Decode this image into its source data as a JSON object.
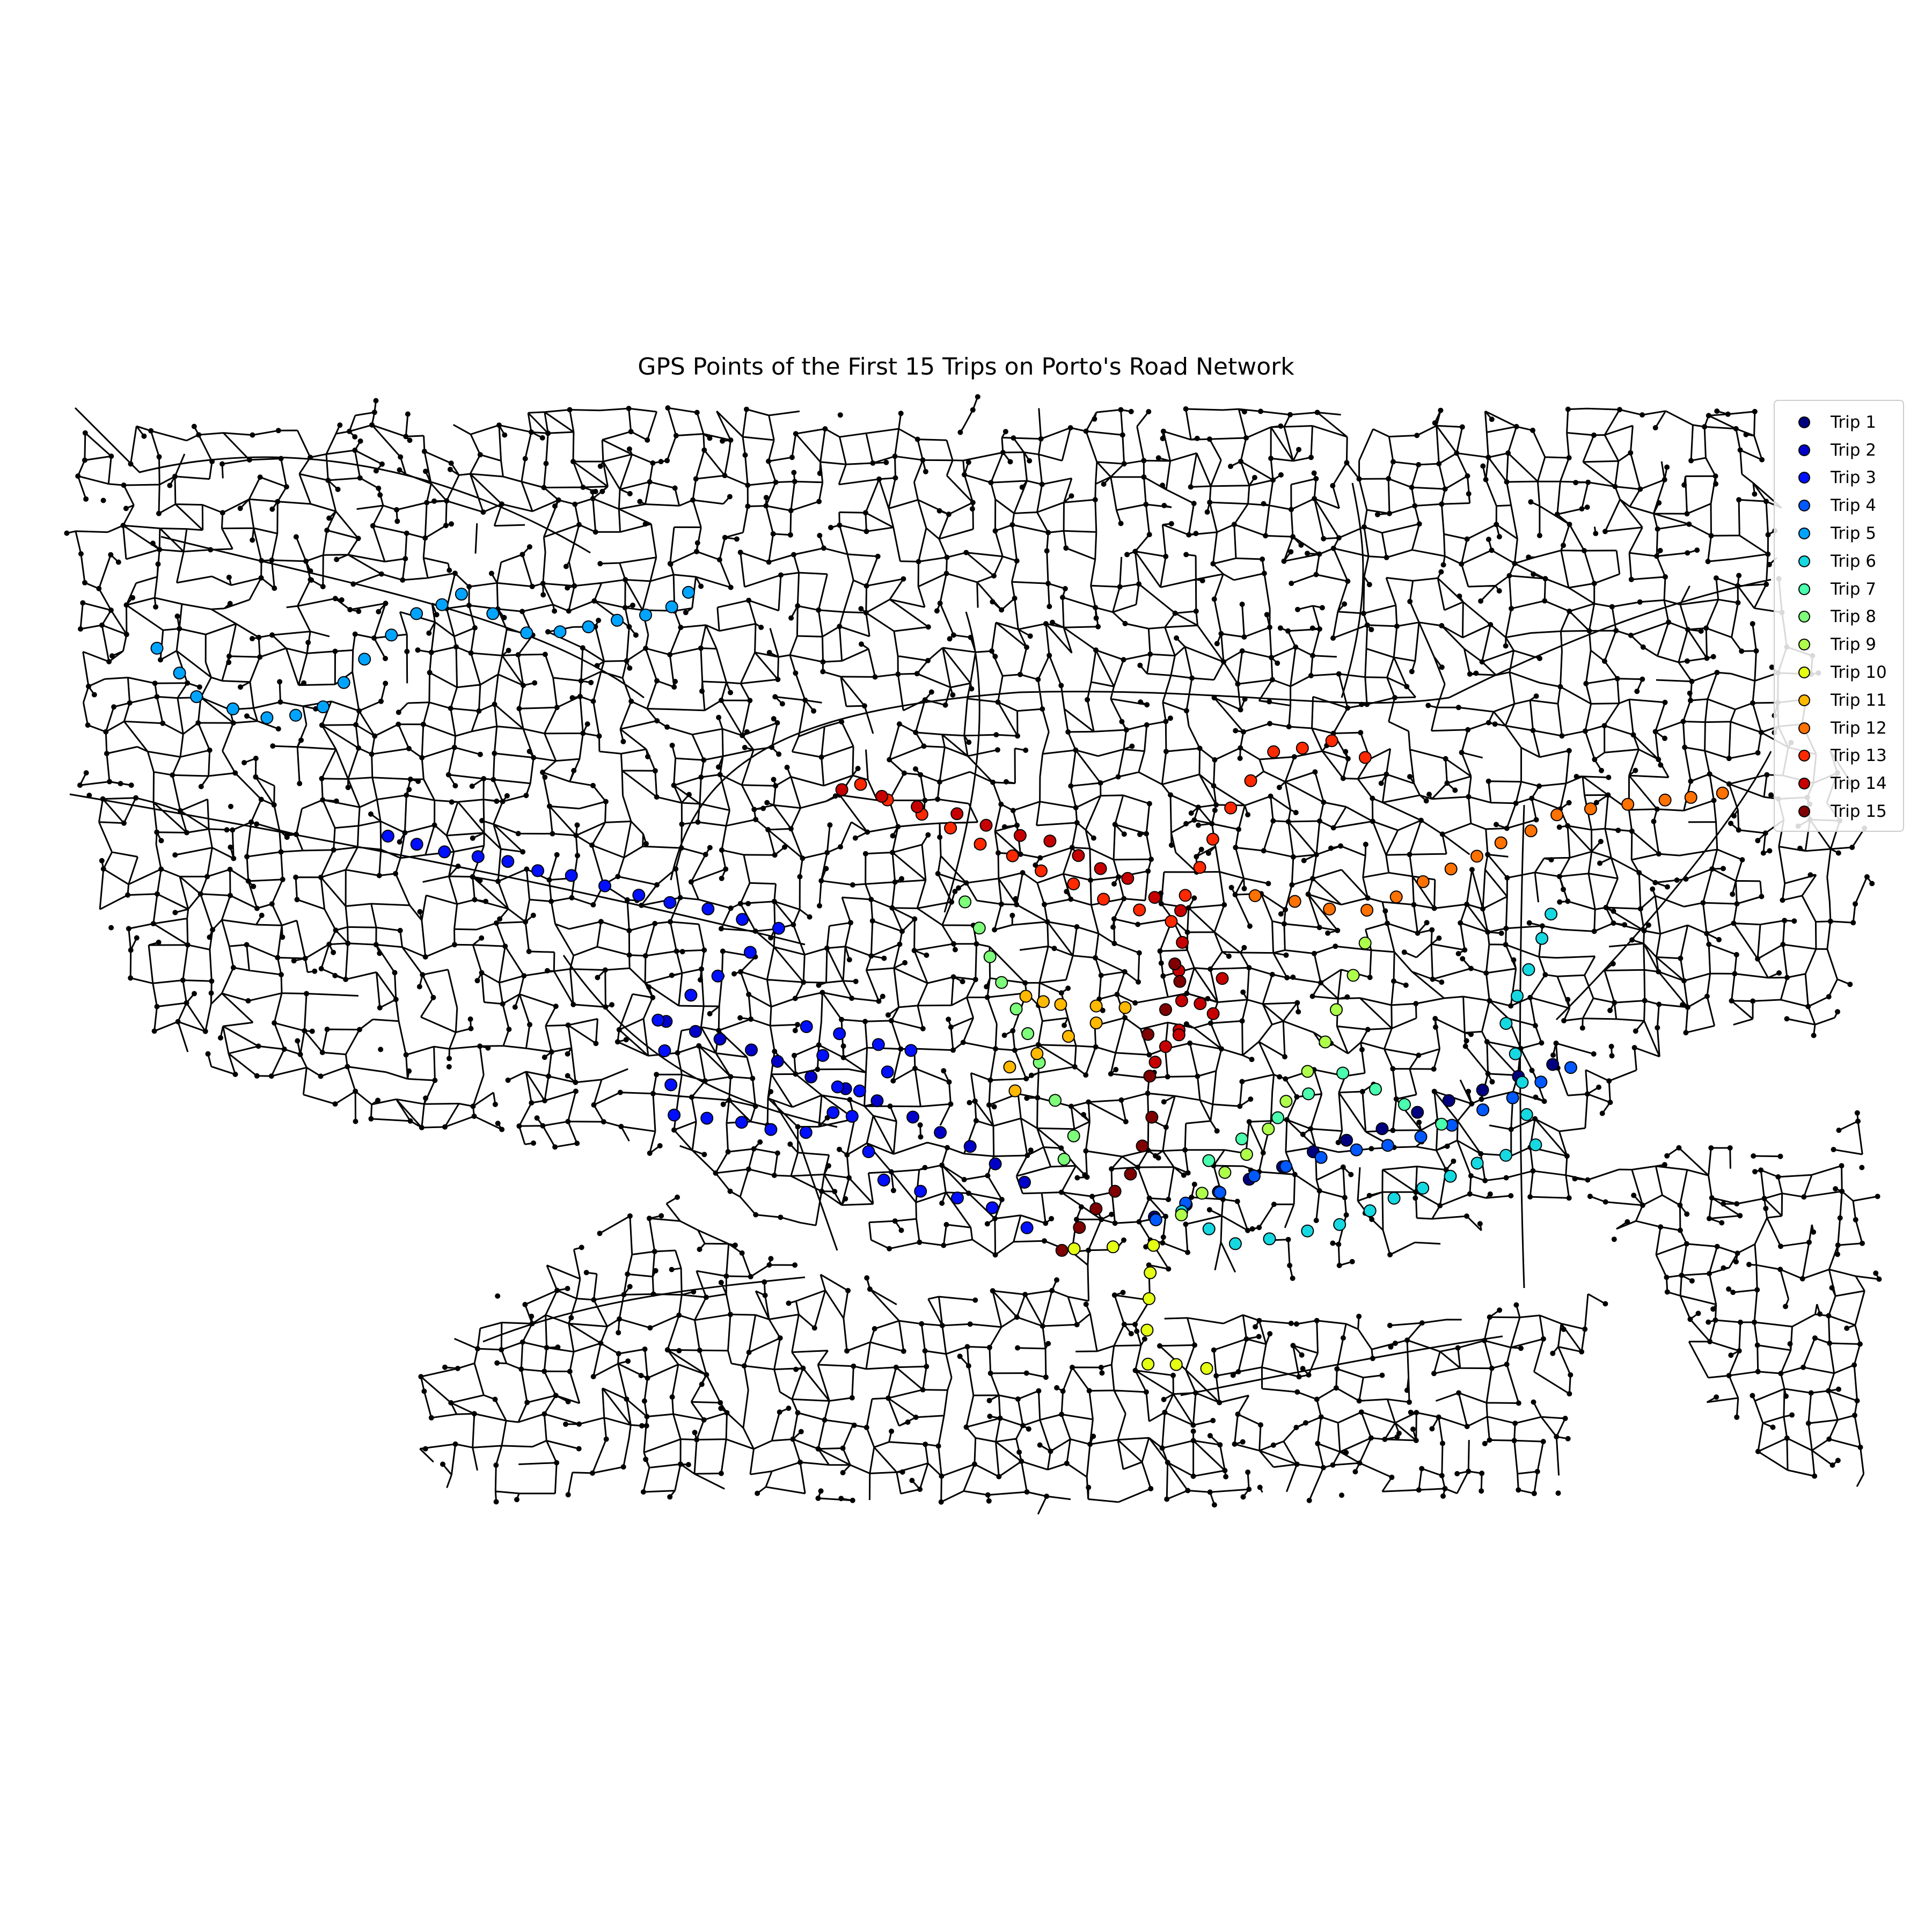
{
  "title": "GPS Points of the First 15 Trips on Porto's Road Network",
  "road_network": {
    "color": "#000000",
    "node_color": "#000000",
    "description_visible": false
  },
  "legend": {
    "items": [
      {
        "label": "Trip 1",
        "color": "#00007f"
      },
      {
        "label": "Trip 2",
        "color": "#0000c8"
      },
      {
        "label": "Trip 3",
        "color": "#0010ff"
      },
      {
        "label": "Trip 4",
        "color": "#0058ff"
      },
      {
        "label": "Trip 5",
        "color": "#00a4ff"
      },
      {
        "label": "Trip 6",
        "color": "#16d8e0"
      },
      {
        "label": "Trip 7",
        "color": "#4affad"
      },
      {
        "label": "Trip 8",
        "color": "#7dff7a"
      },
      {
        "label": "Trip 9",
        "color": "#adff4a"
      },
      {
        "label": "Trip 10",
        "color": "#e4ff13"
      },
      {
        "label": "Trip 11",
        "color": "#ffb900"
      },
      {
        "label": "Trip 12",
        "color": "#ff7100"
      },
      {
        "label": "Trip 13",
        "color": "#ff2900"
      },
      {
        "label": "Trip 14",
        "color": "#c60000"
      },
      {
        "label": "Trip 15",
        "color": "#7f0000"
      }
    ]
  }
}
